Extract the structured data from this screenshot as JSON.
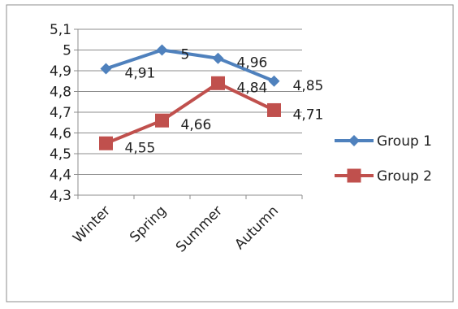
{
  "chart_data": {
    "type": "line",
    "categories": [
      "Winter",
      "Spring",
      "Summer",
      "Autumn"
    ],
    "series": [
      {
        "name": "Group 1",
        "values": [
          4.91,
          5,
          4.96,
          4.85
        ],
        "labels": [
          "4,91",
          "5",
          "4,96",
          "4,85"
        ],
        "color": "#4F81BD",
        "marker": "diamond"
      },
      {
        "name": "Group 2",
        "values": [
          4.55,
          4.66,
          4.84,
          4.71
        ],
        "labels": [
          "4,55",
          "4,66",
          "4,84",
          "4,71"
        ],
        "color": "#C0504D",
        "marker": "square"
      }
    ],
    "ylim": [
      4.3,
      5.1
    ],
    "yticks": [
      5.1,
      5,
      4.9,
      4.8,
      4.7,
      4.6,
      4.5,
      4.4,
      4.3
    ],
    "ytick_labels": [
      "5,1",
      "5",
      "4,9",
      "4,8",
      "4,7",
      "4,6",
      "4,5",
      "4,4",
      "4,3"
    ],
    "grid": true,
    "legend_position": "right"
  }
}
